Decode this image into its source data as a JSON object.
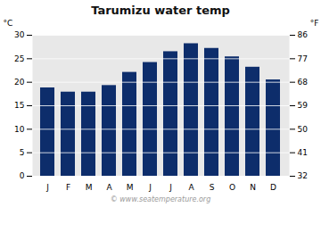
{
  "chart_data": {
    "type": "bar",
    "title": "Tarumizu water temp",
    "categories": [
      "J",
      "F",
      "M",
      "A",
      "M",
      "J",
      "J",
      "A",
      "S",
      "O",
      "N",
      "D"
    ],
    "values": [
      18.8,
      17.9,
      17.9,
      19.3,
      22.1,
      24.2,
      26.5,
      28.2,
      27.2,
      25.4,
      23.2,
      20.5
    ],
    "color": "#0d2d6b",
    "ylim": [
      0,
      30
    ],
    "yticks": [
      0,
      5,
      10,
      15,
      20,
      25,
      30
    ],
    "ylabel": "°C",
    "y2lim": [
      32,
      86
    ],
    "y2ticks": [
      32,
      41,
      50,
      59,
      68,
      77,
      86
    ],
    "y2label": "°F",
    "grid": true,
    "caption": "© www.seatemperature.org"
  }
}
